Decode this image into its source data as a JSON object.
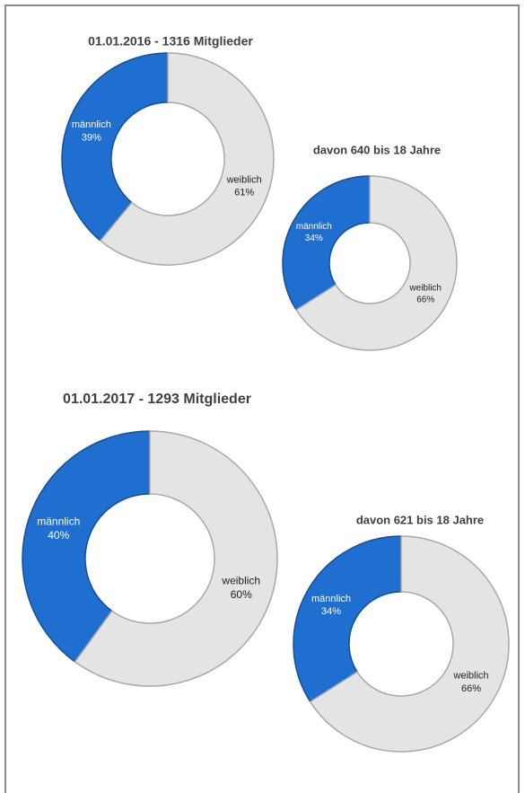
{
  "chart_data": [
    {
      "type": "donut",
      "title": "01.01.2016 - 1316 Mitglieder",
      "categories": [
        "männlich",
        "weiblich"
      ],
      "values": [
        39,
        61
      ],
      "value_labels": [
        "39%",
        "61%"
      ],
      "colors": [
        "#1f6fd1",
        "#e4e4e4"
      ]
    },
    {
      "type": "donut",
      "title": "davon  640 bis 18 Jahre",
      "categories": [
        "männlich",
        "weiblich"
      ],
      "values": [
        34,
        66
      ],
      "value_labels": [
        "34%",
        "66%"
      ],
      "colors": [
        "#1f6fd1",
        "#e4e4e4"
      ]
    },
    {
      "type": "donut",
      "title": "01.01.2017 - 1293 Mitglieder",
      "categories": [
        "männlich",
        "weiblich"
      ],
      "values": [
        40,
        60
      ],
      "value_labels": [
        "40%",
        "60%"
      ],
      "colors": [
        "#1f6fd1",
        "#e4e4e4"
      ]
    },
    {
      "type": "donut",
      "title": "davon  621 bis 18 Jahre",
      "categories": [
        "männlich",
        "weiblich"
      ],
      "values": [
        34,
        66
      ],
      "value_labels": [
        "34%",
        "66%"
      ],
      "colors": [
        "#1f6fd1",
        "#e4e4e4"
      ]
    }
  ]
}
